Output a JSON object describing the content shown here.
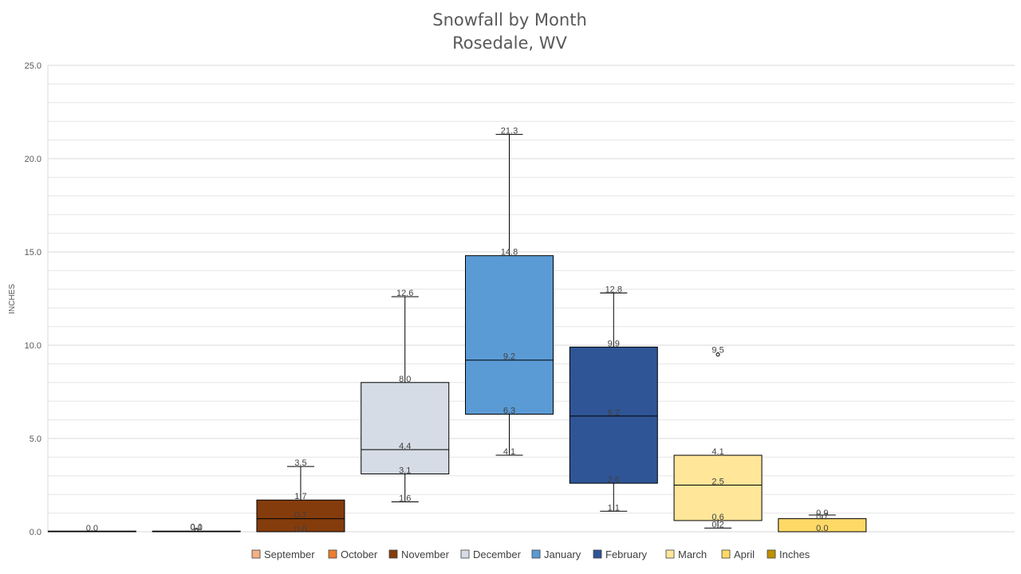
{
  "chart_data": {
    "type": "box",
    "title": "Snowfall by Month",
    "subtitle": "Rosedale, WV",
    "ylabel": "INCHES",
    "ylim": [
      0,
      25
    ],
    "yticks": [
      "0.0",
      "5.0",
      "10.0",
      "15.0",
      "20.0",
      "25.0"
    ],
    "grid": true,
    "legend_position": "bottom",
    "series": [
      {
        "name": "September",
        "color": "#F4B183",
        "min": 0.0,
        "q1": 0.0,
        "median": 0.0,
        "q3": 0.0,
        "max": 0.0,
        "outliers": [],
        "labels": [
          "0.0"
        ]
      },
      {
        "name": "October",
        "color": "#ED7D31",
        "min": 0.0,
        "q1": 0.0,
        "median": 0.0,
        "q3": 0.0,
        "max": 0.0,
        "outliers": [
          0.1
        ],
        "labels": [
          "0.1",
          "0.0"
        ]
      },
      {
        "name": "November",
        "color": "#843C0C",
        "min": 0.0,
        "q1": 0.0,
        "median": 0.7,
        "q3": 1.7,
        "max": 3.5,
        "outliers": [],
        "labels": [
          "3.5",
          "1.7",
          "0.7",
          "0.0"
        ]
      },
      {
        "name": "December",
        "color": "#D6DCE5",
        "min": 1.6,
        "q1": 3.1,
        "median": 4.4,
        "q3": 8.0,
        "max": 12.6,
        "outliers": [],
        "labels": [
          "12.6",
          "8.0",
          "4.4",
          "3.1",
          "1.6"
        ]
      },
      {
        "name": "January",
        "color": "#5B9BD5",
        "min": 4.1,
        "q1": 6.3,
        "median": 9.2,
        "q3": 14.8,
        "max": 21.3,
        "outliers": [],
        "labels": [
          "21.3",
          "14.8",
          "9.2",
          "6.3",
          "4.1"
        ]
      },
      {
        "name": "February",
        "color": "#2F5597",
        "min": 1.1,
        "q1": 2.6,
        "median": 6.2,
        "q3": 9.9,
        "max": 12.8,
        "outliers": [],
        "labels": [
          "12.8",
          "9.9",
          "6.2",
          "2.6",
          "1.1"
        ]
      },
      {
        "name": "March",
        "color": "#FFE699",
        "min": 0.2,
        "q1": 0.6,
        "median": 2.5,
        "q3": 4.1,
        "max": 4.1,
        "outliers": [
          9.5
        ],
        "labels": [
          "9.5",
          "4.1",
          "2.5",
          "0.6",
          "0.2"
        ]
      },
      {
        "name": "April",
        "color": "#FFD966",
        "min": 0.0,
        "q1": 0.0,
        "median": 0.0,
        "q3": 0.7,
        "max": 0.9,
        "outliers": [],
        "labels": [
          "0.9",
          "0.7",
          "0.0"
        ]
      },
      {
        "name": "Inches",
        "color": "#BF9000",
        "min": 0.0,
        "q1": 0.0,
        "median": 0.0,
        "q3": 0.0,
        "max": 0.0,
        "outliers": [],
        "labels": [
          "0.0"
        ]
      }
    ]
  }
}
